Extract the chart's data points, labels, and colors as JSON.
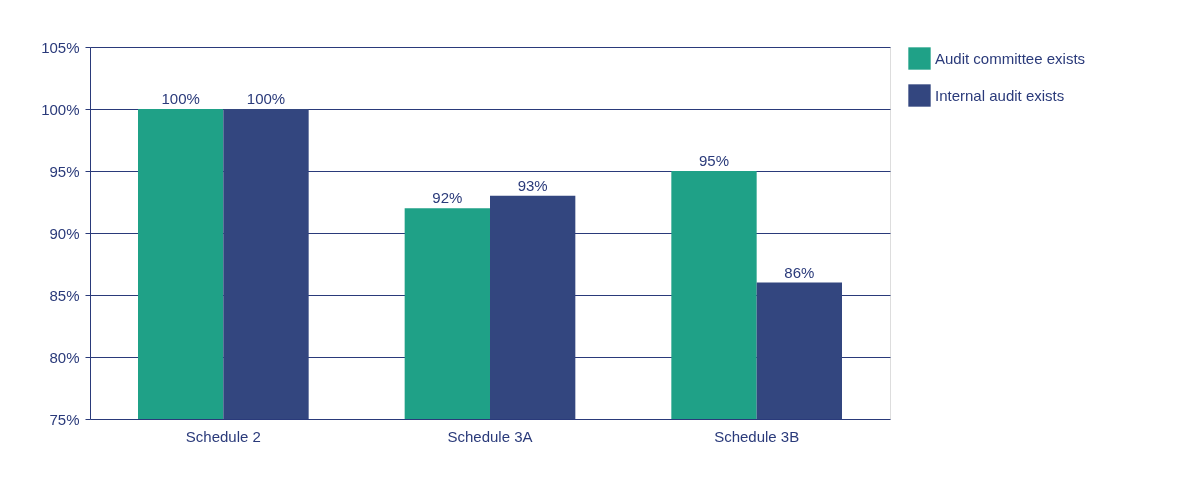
{
  "chart_data": {
    "type": "bar",
    "categories": [
      "Schedule 2",
      "Schedule 3A",
      "Schedule 3B"
    ],
    "series": [
      {
        "name": "Audit committee exists",
        "color": "#1fa187",
        "values": [
          100,
          92,
          95
        ],
        "value_labels": [
          "100%",
          "92%",
          "95%"
        ]
      },
      {
        "name": "Internal audit exists",
        "color": "#33467f",
        "values": [
          100,
          93,
          86
        ],
        "value_labels": [
          "100%",
          "93%",
          "86%"
        ]
      }
    ],
    "ylim": [
      75,
      105
    ],
    "yticks": [
      {
        "value": 75,
        "label": "75%"
      },
      {
        "value": 80,
        "label": "80%"
      },
      {
        "value": 85,
        "label": "85%"
      },
      {
        "value": 90,
        "label": "90%"
      },
      {
        "value": 95,
        "label": "95%"
      },
      {
        "value": 100,
        "label": "100%"
      },
      {
        "value": 105,
        "label": "105%"
      }
    ],
    "grid": "y",
    "legend": "right"
  }
}
